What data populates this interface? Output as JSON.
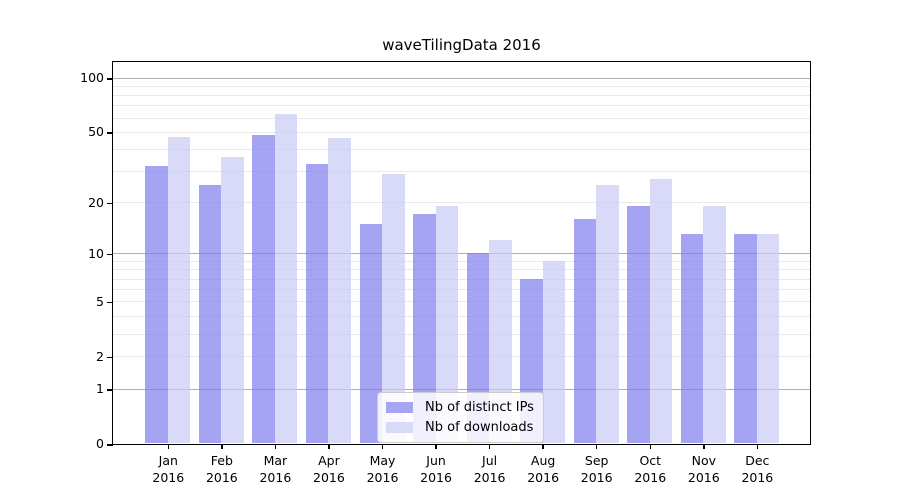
{
  "title": "waveTilingData 2016",
  "chart_data": {
    "type": "bar",
    "title": "waveTilingData 2016",
    "scale": "symlog (position proportional to log(1+value))",
    "categories": [
      {
        "month": "Jan",
        "year": "2016"
      },
      {
        "month": "Feb",
        "year": "2016"
      },
      {
        "month": "Mar",
        "year": "2016"
      },
      {
        "month": "Apr",
        "year": "2016"
      },
      {
        "month": "May",
        "year": "2016"
      },
      {
        "month": "Jun",
        "year": "2016"
      },
      {
        "month": "Jul",
        "year": "2016"
      },
      {
        "month": "Aug",
        "year": "2016"
      },
      {
        "month": "Sep",
        "year": "2016"
      },
      {
        "month": "Oct",
        "year": "2016"
      },
      {
        "month": "Nov",
        "year": "2016"
      },
      {
        "month": "Dec",
        "year": "2016"
      }
    ],
    "series": [
      {
        "name": "Nb of distinct IPs",
        "color": "#a5a5f2",
        "fill": "rgba(126,126,236,0.70)",
        "values": [
          32,
          25,
          48,
          33,
          15,
          17,
          10,
          7,
          16,
          19,
          13,
          13
        ]
      },
      {
        "name": "Nb of downloads",
        "color": "#d9d9f8",
        "fill": "rgba(201,201,245,0.70)",
        "values": [
          47,
          36,
          63,
          46,
          29,
          19,
          12,
          9,
          25,
          27,
          19,
          13
        ]
      }
    ],
    "yticks": [
      {
        "v": 0,
        "label": "0"
      },
      {
        "v": 1,
        "label": "1"
      },
      {
        "v": 2,
        "label": "2"
      },
      {
        "v": 5,
        "label": "5"
      },
      {
        "v": 10,
        "label": "10"
      },
      {
        "v": 20,
        "label": "20"
      },
      {
        "v": 50,
        "label": "50"
      },
      {
        "v": 100,
        "label": "100"
      }
    ],
    "ylim": [
      0,
      122.6
    ],
    "grid": {
      "major": [
        1,
        10,
        100
      ],
      "minor": [
        2,
        3,
        4,
        5,
        6,
        7,
        8,
        9,
        20,
        30,
        40,
        50,
        60,
        70,
        80,
        90
      ],
      "major_color": "#b0b0b0",
      "minor_color": "#e9e9e9"
    },
    "legend": {
      "position": "bottom-center",
      "items": [
        "Nb of distinct IPs",
        "Nb of downloads"
      ]
    }
  }
}
